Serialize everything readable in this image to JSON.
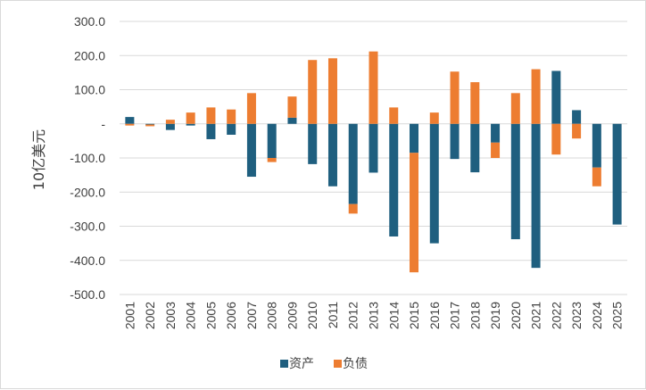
{
  "chart_data": {
    "type": "bar",
    "stacked": true,
    "title": "",
    "xlabel": "",
    "ylabel": "10亿美元",
    "ylim": [
      -500,
      300
    ],
    "yticks": [
      {
        "value": 300,
        "label": "300.0"
      },
      {
        "value": 200,
        "label": "200.0"
      },
      {
        "value": 100,
        "label": "100.0"
      },
      {
        "value": 0,
        "label": "-"
      },
      {
        "value": -100,
        "label": "-100.0"
      },
      {
        "value": -200,
        "label": "-200.0"
      },
      {
        "value": -300,
        "label": "-300.0"
      },
      {
        "value": -400,
        "label": "-400.0"
      },
      {
        "value": -500,
        "label": "-500.0"
      }
    ],
    "grid": true,
    "legend_position": "bottom",
    "categories": [
      "2001",
      "2002",
      "2003",
      "2004",
      "2005",
      "2006",
      "2007",
      "2008",
      "2009",
      "2010",
      "2011",
      "2012",
      "2013",
      "2014",
      "2015",
      "2016",
      "2017",
      "2018",
      "2019",
      "2020",
      "2021",
      "2022",
      "2023",
      "2024",
      "2025"
    ],
    "series": [
      {
        "name": "资产",
        "color": "#1f5f7f",
        "values": [
          20,
          -2,
          -18,
          -5,
          -45,
          -32,
          -155,
          -100,
          18,
          -118,
          -183,
          -235,
          -143,
          -330,
          -85,
          -350,
          -103,
          -142,
          -55,
          -338,
          -422,
          155,
          40,
          -128,
          -295
        ]
      },
      {
        "name": "负债",
        "color": "#ed7d31",
        "values": [
          -5,
          -5,
          12,
          33,
          48,
          42,
          90,
          -12,
          62,
          187,
          192,
          -28,
          212,
          48,
          -350,
          33,
          153,
          122,
          -45,
          90,
          160,
          -90,
          -43,
          -55,
          0
        ]
      }
    ]
  }
}
